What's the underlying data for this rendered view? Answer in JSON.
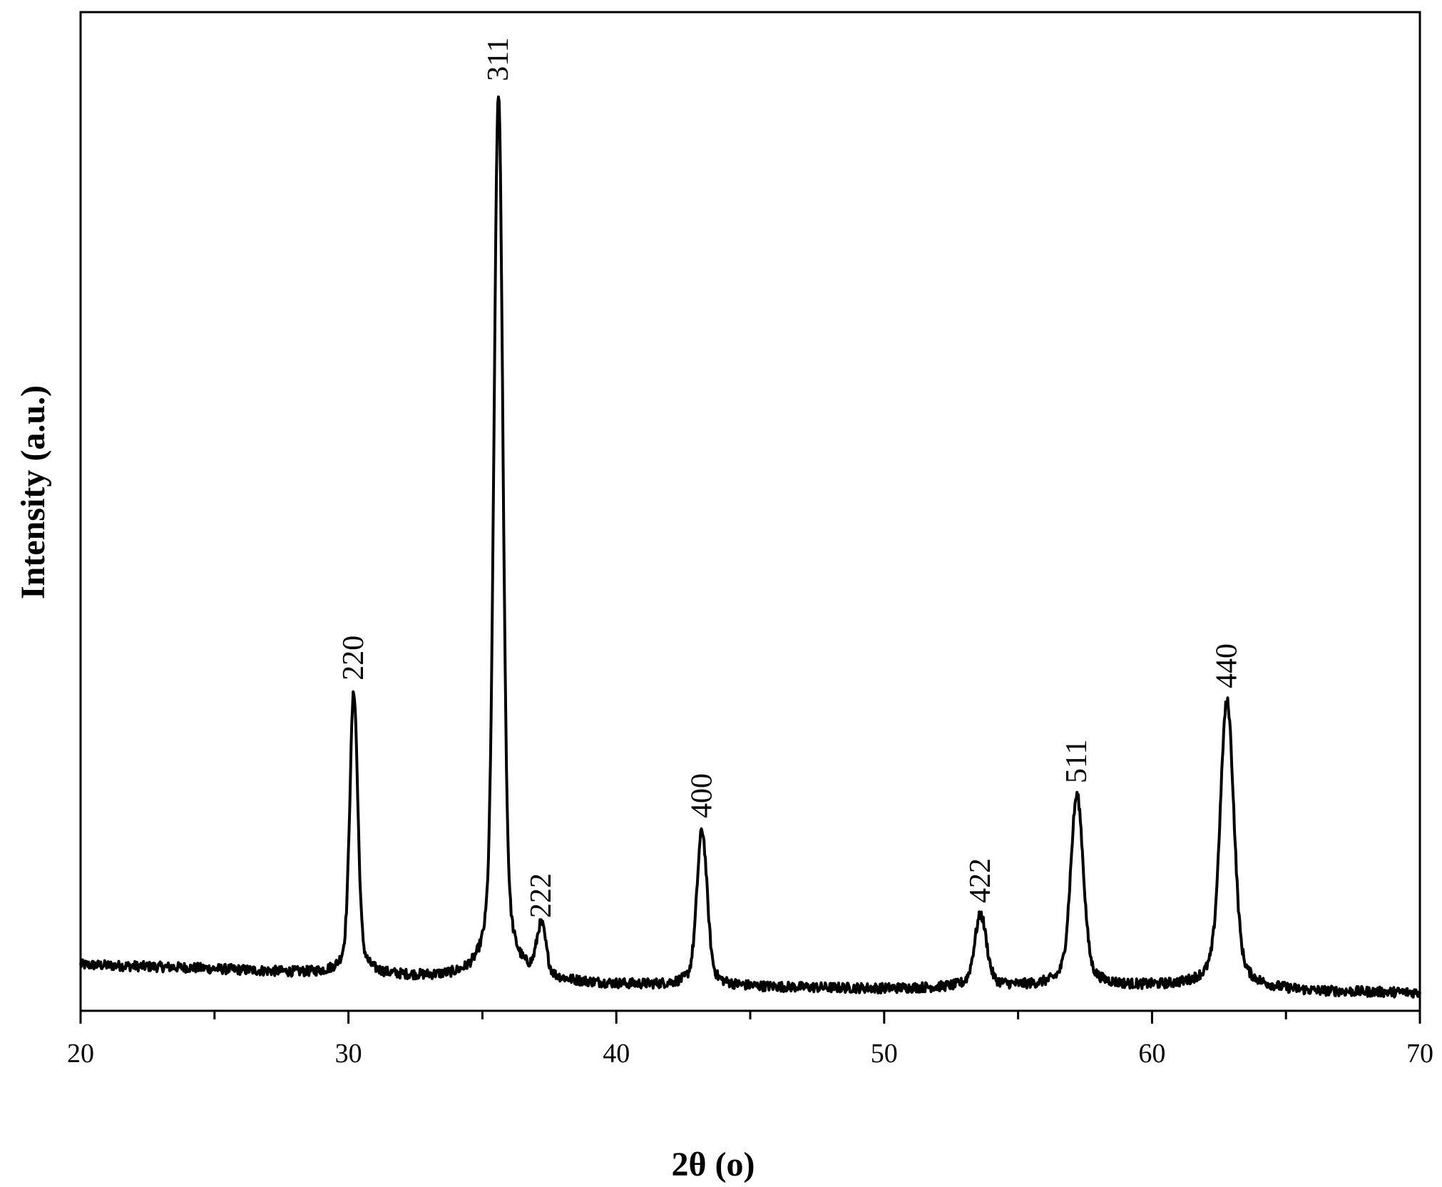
{
  "chart_data": {
    "type": "line",
    "title": "",
    "xlabel": "2θ (o)",
    "ylabel": "Intensity (a.u.)",
    "xlim": [
      20,
      70
    ],
    "ylim": [
      0,
      1000
    ],
    "x_ticks": [
      20,
      30,
      40,
      50,
      60,
      70
    ],
    "x_minor_step": 5,
    "y_ticks_shown": false,
    "grid": false,
    "legend": "none",
    "line_color": "#000000",
    "background_profile": [
      [
        20,
        46
      ],
      [
        24,
        43
      ],
      [
        28,
        38
      ],
      [
        32,
        34
      ],
      [
        36,
        30
      ],
      [
        40,
        26
      ],
      [
        44,
        24
      ],
      [
        50,
        22
      ],
      [
        56,
        24
      ],
      [
        62,
        24
      ],
      [
        66,
        19
      ],
      [
        70,
        18
      ]
    ],
    "peaks": [
      {
        "label": "220",
        "x": 30.2,
        "y": 318
      },
      {
        "label": "311",
        "x": 35.6,
        "y": 918
      },
      {
        "label": "222",
        "x": 37.2,
        "y": 80
      },
      {
        "label": "400",
        "x": 43.2,
        "y": 180
      },
      {
        "label": "422",
        "x": 53.6,
        "y": 95
      },
      {
        "label": "511",
        "x": 57.2,
        "y": 215
      },
      {
        "label": "440",
        "x": 62.8,
        "y": 310
      }
    ]
  }
}
